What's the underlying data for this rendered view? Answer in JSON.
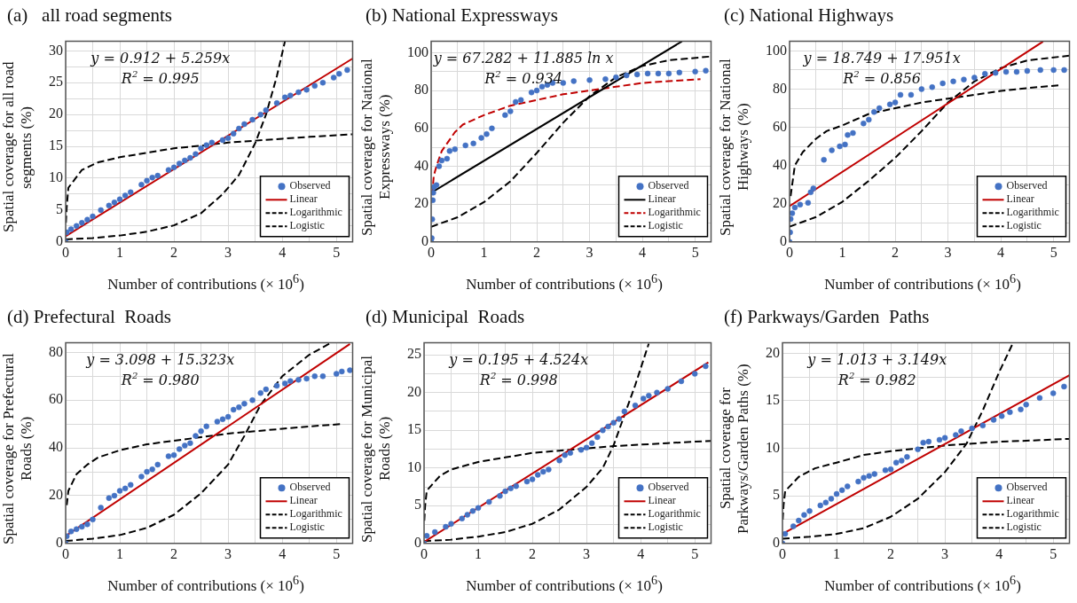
{
  "chart_data": [
    {
      "type": "scatter",
      "title": "(a)   all road segments",
      "xlabel": "Number of contributions (× 10$^{6}$)",
      "ylabel": "Spatial coverage for all road segments (%)",
      "annotations": [
        "y = 0.912 + 5.259x",
        "R$^{2}$ = 0.995"
      ],
      "xlim": [
        0,
        5.3
      ],
      "xticks": [
        0,
        {
          "value": 0.5,
          "label": null
        },
        1,
        {
          "value": 1.5,
          "label": null
        },
        2,
        {
          "value": 2.5,
          "label": null
        },
        3,
        {
          "value": 3.5,
          "label": null
        },
        4,
        {
          "value": 4.5,
          "label": null
        },
        5
      ],
      "ylim": [
        0,
        31.5
      ],
      "yticks": [
        0,
        {
          "value": 2.5,
          "label": null
        },
        5,
        {
          "value": 7.5,
          "label": null
        },
        10,
        {
          "value": 12.5,
          "label": null
        },
        15,
        {
          "value": 17.5,
          "label": null
        },
        20,
        {
          "value": 22.5,
          "label": null
        },
        25,
        {
          "value": 27.5,
          "label": null
        },
        30
      ],
      "grid": true,
      "legend": "bottom right",
      "series": [
        {
          "name": "Observed",
          "type": "scatter",
          "marker": "circle",
          "color": "#4472c4",
          "x": [
            0,
            0.02,
            0.1,
            0.2,
            0.3,
            0.4,
            0.5,
            0.65,
            0.8,
            0.9,
            1,
            1.1,
            1.2,
            1.4,
            1.5,
            1.6,
            1.7,
            1.9,
            2,
            2.1,
            2.2,
            2.3,
            2.4,
            2.5,
            2.6,
            2.7,
            2.9,
            3,
            3.1,
            3.2,
            3.3,
            3.45,
            3.6,
            3.7,
            3.9,
            4.05,
            4.15,
            4.3,
            4.45,
            4.6,
            4.75,
            4.95,
            5.05,
            5.2
          ],
          "values": [
            0,
            1.5,
            2,
            2.5,
            3,
            3.5,
            4,
            5,
            5.7,
            6.2,
            6.7,
            7.3,
            7.8,
            9,
            9.6,
            10.1,
            10.4,
            11.3,
            11.7,
            12.3,
            12.8,
            13.2,
            13.8,
            14.7,
            15.2,
            15.6,
            16,
            16.3,
            17,
            17.8,
            18.5,
            19.2,
            20,
            20.7,
            21.8,
            22.7,
            23,
            23.5,
            23.9,
            24.5,
            25,
            25.8,
            26.4,
            27
          ]
        },
        {
          "name": "Linear",
          "type": "line",
          "marker": "none",
          "line_style": "solid",
          "color": "#c00000",
          "x": [
            0,
            5.3
          ],
          "values": [
            0.9,
            28.8
          ]
        },
        {
          "name": "Logarithmic",
          "type": "line",
          "marker": "none",
          "line_style": "dashed",
          "color": "#000000",
          "x": [
            0.005,
            0.02,
            0.05,
            0.3,
            0.6,
            1,
            1.5,
            2,
            2.5,
            3,
            3.5,
            4,
            4.5,
            5.3
          ],
          "values": [
            3,
            5.5,
            8.5,
            11.3,
            12.5,
            13.3,
            14,
            14.7,
            15.1,
            15.6,
            15.9,
            16.2,
            16.5,
            16.9
          ]
        },
        {
          "name": "Logistic",
          "type": "line",
          "marker": "none",
          "line_style": "dashed",
          "color": "#000000",
          "x": [
            0,
            0.5,
            1,
            1.5,
            2,
            2.5,
            2.9,
            3.2,
            3.5,
            3.7,
            3.9,
            4.05
          ],
          "values": [
            0.4,
            0.6,
            1,
            1.6,
            2.6,
            4.5,
            7.5,
            10.5,
            15.5,
            20,
            26,
            31.5
          ]
        }
      ]
    },
    {
      "type": "scatter",
      "title": "(b) National Expressways",
      "xlabel": "Number of contributions (× 10$^{6}$)",
      "ylabel": "Spatial coverage for National Expressways (%)",
      "annotations": [
        "y = 67.282 + 11.885 ln x",
        "R$^{2}$ = 0.934"
      ],
      "xlim": [
        0,
        5.3
      ],
      "xticks": [
        0,
        {
          "value": 0.5,
          "label": null
        },
        1,
        {
          "value": 1.5,
          "label": null
        },
        2,
        {
          "value": 2.5,
          "label": null
        },
        3,
        {
          "value": 3.5,
          "label": null
        },
        4,
        {
          "value": 4.5,
          "label": null
        },
        5
      ],
      "ylim": [
        0,
        106
      ],
      "yticks": [
        0,
        {
          "value": 10,
          "label": null
        },
        20,
        {
          "value": 30,
          "label": null
        },
        40,
        {
          "value": 50,
          "label": null
        },
        60,
        {
          "value": 70,
          "label": null
        },
        80,
        {
          "value": 90,
          "label": null
        },
        100
      ],
      "grid": true,
      "legend": "bottom right",
      "series": [
        {
          "name": "Observed",
          "type": "scatter",
          "marker": "circle",
          "color": "#4472c4",
          "x": [
            0,
            0.01,
            0.02,
            0.03,
            0.04,
            0.05,
            0.1,
            0.15,
            0.2,
            0.3,
            0.35,
            0.45,
            0.65,
            0.8,
            0.95,
            1.05,
            1.15,
            1.4,
            1.5,
            1.6,
            1.7,
            1.9,
            2,
            2.1,
            2.2,
            2.3,
            2.5,
            2.7,
            3,
            3.3,
            3.5,
            3.7,
            3.9,
            4.1,
            4.3,
            4.5,
            4.7,
            5,
            5.2
          ],
          "values": [
            0,
            2,
            12,
            22,
            26,
            29,
            30,
            40,
            43,
            44,
            48,
            49,
            51,
            52,
            55,
            57,
            60,
            67,
            69,
            74,
            75,
            79,
            80,
            82,
            83,
            84,
            84,
            85,
            85.5,
            86,
            87,
            88,
            88.5,
            89,
            89,
            89,
            89.5,
            90,
            90.5
          ]
        },
        {
          "name": "Linear",
          "type": "line",
          "marker": "none",
          "line_style": "solid",
          "color": "#000000",
          "x": [
            0,
            4.75
          ],
          "values": [
            26,
            106
          ]
        },
        {
          "name": "Logarithmic",
          "type": "line",
          "marker": "none",
          "line_style": "dashed",
          "color": "#c00000",
          "x": [
            0.02,
            0.05,
            0.1,
            0.2,
            0.45,
            0.6,
            1,
            1.5,
            2,
            2.5,
            3,
            3.5,
            4,
            4.5,
            5.1
          ],
          "values": [
            25,
            35,
            40,
            48,
            58,
            62,
            67,
            72,
            75,
            78,
            80,
            82,
            84,
            85,
            86
          ]
        },
        {
          "name": "Logistic",
          "type": "line",
          "marker": "none",
          "line_style": "dashed",
          "color": "#000000",
          "x": [
            0,
            0.5,
            1,
            1.5,
            2,
            2.5,
            3,
            3.5,
            4,
            4.5,
            5.3
          ],
          "values": [
            8,
            13,
            21,
            32,
            47,
            63,
            77,
            87,
            93,
            96,
            98
          ]
        }
      ]
    },
    {
      "type": "scatter",
      "title": "(c) National Highways",
      "xlabel": "Number of contributions (× 10$^{6}$)",
      "ylabel": "Spatial coverage for National Highways (%)",
      "annotations": [
        "y = 18.749 + 17.951x",
        "R$^{2}$ = 0.856"
      ],
      "xlim": [
        0,
        5.3
      ],
      "xticks": [
        0,
        {
          "value": 0.5,
          "label": null
        },
        1,
        {
          "value": 1.5,
          "label": null
        },
        2,
        {
          "value": 2.5,
          "label": null
        },
        3,
        {
          "value": 3.5,
          "label": null
        },
        4,
        {
          "value": 4.5,
          "label": null
        },
        5
      ],
      "ylim": [
        0,
        105
      ],
      "yticks": [
        0,
        {
          "value": 10,
          "label": null
        },
        20,
        {
          "value": 30,
          "label": null
        },
        40,
        {
          "value": 50,
          "label": null
        },
        60,
        {
          "value": 70,
          "label": null
        },
        80,
        {
          "value": 90,
          "label": null
        },
        100
      ],
      "grid": true,
      "legend": "bottom right",
      "series": [
        {
          "name": "Observed",
          "type": "scatter",
          "marker": "circle",
          "color": "#4472c4",
          "x": [
            0,
            0.01,
            0.02,
            0.05,
            0.1,
            0.2,
            0.35,
            0.4,
            0.45,
            0.65,
            0.8,
            0.95,
            1.05,
            1.1,
            1.2,
            1.4,
            1.5,
            1.6,
            1.7,
            1.9,
            2,
            2.1,
            2.3,
            2.5,
            2.7,
            2.9,
            3.1,
            3.3,
            3.5,
            3.7,
            3.9,
            4.1,
            4.3,
            4.5,
            4.75,
            5,
            5.2
          ],
          "values": [
            0,
            5,
            12,
            15,
            18,
            19.5,
            20.5,
            26,
            28,
            43,
            48,
            50,
            51,
            56,
            57,
            62,
            64,
            68,
            70,
            72,
            73,
            77,
            77,
            80,
            81,
            83,
            84,
            85,
            86,
            88,
            88.5,
            89,
            89,
            89.5,
            90,
            90,
            90
          ]
        },
        {
          "name": "Linear",
          "type": "line",
          "marker": "none",
          "line_style": "solid",
          "color": "#c00000",
          "x": [
            0,
            4.8
          ],
          "values": [
            18.7,
            104.9
          ]
        },
        {
          "name": "Logarithmic",
          "type": "line",
          "marker": "none",
          "line_style": "dashed",
          "color": "#000000",
          "x": [
            0.02,
            0.05,
            0.1,
            0.25,
            0.5,
            0.7,
            1,
            1.5,
            2,
            2.5,
            3,
            3.5,
            4,
            4.5,
            5.1
          ],
          "values": [
            24,
            30,
            40,
            47,
            54,
            58,
            61,
            67,
            70,
            73,
            75,
            77,
            79,
            80.5,
            82
          ]
        },
        {
          "name": "Logistic",
          "type": "line",
          "marker": "none",
          "line_style": "dashed",
          "color": "#000000",
          "x": [
            0,
            0.5,
            1,
            1.5,
            2,
            2.5,
            3,
            3.5,
            4,
            4.5,
            5.3
          ],
          "values": [
            8,
            13,
            21,
            32,
            44,
            58,
            73,
            84,
            91,
            95,
            97.5
          ]
        }
      ]
    },
    {
      "type": "scatter",
      "title": "(d) Prefectural  Roads",
      "xlabel": "Number of contributions (× 10$^{6}$)",
      "ylabel": "Spatial coverage for Prefectural Roads (%)",
      "annotations": [
        "y = 3.098 + 15.323x",
        "R$^{2}$ = 0.980"
      ],
      "xlim": [
        0,
        5.3
      ],
      "xticks": [
        0,
        {
          "value": 0.5,
          "label": null
        },
        1,
        {
          "value": 1.5,
          "label": null
        },
        2,
        {
          "value": 2.5,
          "label": null
        },
        3,
        {
          "value": 3.5,
          "label": null
        },
        4,
        {
          "value": 4.5,
          "label": null
        },
        5
      ],
      "ylim": [
        0,
        84
      ],
      "yticks": [
        0,
        {
          "value": 10,
          "label": null
        },
        20,
        {
          "value": 30,
          "label": null
        },
        40,
        {
          "value": 50,
          "label": null
        },
        60,
        {
          "value": 70,
          "label": null
        },
        80
      ],
      "grid": true,
      "legend": "bottom right",
      "series": [
        {
          "name": "Observed",
          "type": "scatter",
          "marker": "circle",
          "color": "#4472c4",
          "x": [
            0,
            0.02,
            0.1,
            0.2,
            0.3,
            0.4,
            0.5,
            0.65,
            0.8,
            0.9,
            1,
            1.1,
            1.2,
            1.4,
            1.5,
            1.6,
            1.7,
            1.9,
            2,
            2.1,
            2.2,
            2.3,
            2.4,
            2.5,
            2.6,
            2.8,
            2.9,
            3,
            3.1,
            3.2,
            3.3,
            3.45,
            3.6,
            3.7,
            3.9,
            4.05,
            4.15,
            4.3,
            4.45,
            4.6,
            4.75,
            5,
            5.1,
            5.25
          ],
          "values": [
            0,
            3,
            5,
            6,
            7,
            8,
            10,
            15,
            19,
            20,
            22,
            23,
            24.5,
            28,
            30,
            31,
            33,
            36.5,
            37,
            39.5,
            41,
            42,
            45,
            47,
            49,
            51,
            52,
            53,
            56,
            57,
            58.5,
            60,
            63,
            64.5,
            66,
            67,
            68,
            68.5,
            69,
            70,
            70,
            71,
            72,
            72.5
          ]
        },
        {
          "name": "Linear",
          "type": "line",
          "marker": "none",
          "line_style": "solid",
          "color": "#c00000",
          "x": [
            0,
            5.25
          ],
          "values": [
            3.1,
            83.5
          ]
        },
        {
          "name": "Logarithmic",
          "type": "line",
          "marker": "none",
          "line_style": "dashed",
          "color": "#000000",
          "x": [
            0.02,
            0.05,
            0.2,
            0.4,
            0.6,
            1,
            1.5,
            2,
            2.5,
            3,
            3.5,
            4,
            4.5,
            5.1
          ],
          "values": [
            16,
            22,
            29,
            33,
            36,
            39,
            41.5,
            43,
            44.5,
            46,
            47,
            48,
            49,
            50
          ]
        },
        {
          "name": "Logistic",
          "type": "line",
          "marker": "none",
          "line_style": "dashed",
          "color": "#000000",
          "x": [
            0,
            0.5,
            1,
            1.5,
            2,
            2.5,
            3,
            3.3,
            3.6,
            4,
            4.5,
            4.9
          ],
          "values": [
            1,
            2,
            3.5,
            6.5,
            12,
            21,
            33,
            45,
            58,
            70,
            79,
            84
          ]
        }
      ]
    },
    {
      "type": "scatter",
      "title": "(d) Municipal  Roads",
      "xlabel": "Number of contributions (× 10$^{6}$)",
      "ylabel": "Spatial coverage for Municipal Roads (%)",
      "annotations": [
        "y = 0.195 + 4.524x",
        "R$^{2}$ = 0.998"
      ],
      "xlim": [
        0,
        5.3
      ],
      "xticks": [
        0,
        {
          "value": 0.5,
          "label": null
        },
        1,
        {
          "value": 1.5,
          "label": null
        },
        2,
        {
          "value": 2.5,
          "label": null
        },
        3,
        {
          "value": 3.5,
          "label": null
        },
        4,
        {
          "value": 4.5,
          "label": null
        },
        5
      ],
      "ylim": [
        0,
        26.6
      ],
      "yticks": [
        0,
        {
          "value": 2.5,
          "label": null
        },
        5,
        {
          "value": 7.5,
          "label": null
        },
        10,
        {
          "value": 12.5,
          "label": null
        },
        15,
        {
          "value": 17.5,
          "label": null
        },
        20,
        {
          "value": 22.5,
          "label": null
        },
        25
      ],
      "grid": true,
      "legend": "bottom right",
      "series": [
        {
          "name": "Observed",
          "type": "scatter",
          "marker": "circle",
          "color": "#4472c4",
          "x": [
            0,
            0.05,
            0.2,
            0.4,
            0.5,
            0.7,
            0.8,
            0.9,
            1,
            1.2,
            1.4,
            1.5,
            1.6,
            1.7,
            1.9,
            2,
            2.1,
            2.2,
            2.3,
            2.5,
            2.6,
            2.7,
            2.9,
            3,
            3.1,
            3.2,
            3.3,
            3.4,
            3.5,
            3.6,
            3.7,
            3.9,
            4.05,
            4.15,
            4.3,
            4.5,
            4.75,
            5,
            5.2
          ],
          "values": [
            0,
            1,
            1.5,
            2.2,
            2.6,
            3.3,
            3.8,
            4.3,
            4.7,
            5.5,
            6.3,
            6.9,
            7.3,
            7.6,
            8.2,
            8.5,
            9.1,
            9.5,
            9.8,
            11,
            11.7,
            12,
            12.4,
            12.7,
            13.3,
            14.1,
            15,
            15.5,
            16,
            16.5,
            17.5,
            18.3,
            19.2,
            19.6,
            20,
            20.5,
            21.5,
            22.5,
            23.5
          ]
        },
        {
          "name": "Linear",
          "type": "line",
          "marker": "none",
          "line_style": "solid",
          "color": "#c00000",
          "x": [
            0,
            5.25
          ],
          "values": [
            0.2,
            24
          ]
        },
        {
          "name": "Logarithmic",
          "type": "line",
          "marker": "none",
          "line_style": "dashed",
          "color": "#000000",
          "x": [
            0.005,
            0.02,
            0.05,
            0.3,
            0.5,
            1,
            1.5,
            2,
            2.5,
            3,
            3.5,
            4,
            4.5,
            5.3
          ],
          "values": [
            3,
            5,
            7,
            9,
            9.8,
            10.8,
            11.4,
            12,
            12.3,
            12.6,
            12.9,
            13.1,
            13.3,
            13.6
          ]
        },
        {
          "name": "Logistic",
          "type": "line",
          "marker": "none",
          "line_style": "dashed",
          "color": "#000000",
          "x": [
            0,
            0.5,
            1,
            1.5,
            2,
            2.5,
            3,
            3.3,
            3.5,
            3.7,
            3.9,
            4.15
          ],
          "values": [
            0.3,
            0.5,
            0.9,
            1.5,
            2.6,
            4.5,
            7.5,
            10,
            13,
            17,
            21,
            26.5
          ]
        }
      ]
    },
    {
      "type": "scatter",
      "title": "(f) Parkways/Garden  Paths",
      "xlabel": "Number of contributions (× 10$^{6}$)",
      "ylabel": "Spatial coverage for Parkways/Garden Paths (%)",
      "annotations": [
        "y = 1.013 + 3.149x",
        "R$^{2}$ = 0.982"
      ],
      "xlim": [
        0,
        5.3
      ],
      "xticks": [
        0,
        {
          "value": 0.5,
          "label": null
        },
        1,
        {
          "value": 1.5,
          "label": null
        },
        2,
        {
          "value": 2.5,
          "label": null
        },
        3,
        {
          "value": 3.5,
          "label": null
        },
        4,
        {
          "value": 4.5,
          "label": null
        },
        5
      ],
      "ylim": [
        0,
        21.1
      ],
      "yticks": [
        0,
        {
          "value": 2.5,
          "label": null
        },
        5,
        {
          "value": 7.5,
          "label": null
        },
        10,
        {
          "value": 12.5,
          "label": null
        },
        15,
        {
          "value": 17.5,
          "label": null
        },
        20
      ],
      "grid": true,
      "legend": "bottom right",
      "series": [
        {
          "name": "Observed",
          "type": "scatter",
          "marker": "circle",
          "color": "#4472c4",
          "x": [
            0,
            0.05,
            0.2,
            0.3,
            0.4,
            0.5,
            0.7,
            0.8,
            0.9,
            1,
            1.1,
            1.2,
            1.4,
            1.5,
            1.6,
            1.7,
            1.9,
            2,
            2.1,
            2.2,
            2.3,
            2.5,
            2.6,
            2.7,
            2.9,
            3,
            3.2,
            3.3,
            3.5,
            3.7,
            3.9,
            4.05,
            4.2,
            4.4,
            4.5,
            4.75,
            5,
            5.2
          ],
          "values": [
            0,
            1,
            1.8,
            2.4,
            3,
            3.4,
            4,
            4.3,
            4.7,
            5.2,
            5.6,
            6,
            6.5,
            6.9,
            7.1,
            7.3,
            7.7,
            7.8,
            8.5,
            8.7,
            9.1,
            9.9,
            10.6,
            10.7,
            10.9,
            11.1,
            11.4,
            11.8,
            12.1,
            12.4,
            13,
            13.4,
            13.8,
            14.1,
            14.6,
            15.3,
            15.8,
            16.5
          ]
        },
        {
          "name": "Linear",
          "type": "line",
          "marker": "none",
          "line_style": "solid",
          "color": "#c00000",
          "x": [
            0,
            5.3
          ],
          "values": [
            1,
            17.7
          ]
        },
        {
          "name": "Logarithmic",
          "type": "line",
          "marker": "none",
          "line_style": "dashed",
          "color": "#000000",
          "x": [
            0.005,
            0.02,
            0.05,
            0.3,
            0.6,
            1,
            1.5,
            2,
            2.5,
            3,
            3.5,
            4,
            4.5,
            5.3
          ],
          "values": [
            2.5,
            4,
            5.5,
            7,
            7.9,
            8.5,
            9.3,
            9.7,
            10,
            10.3,
            10.5,
            10.7,
            10.8,
            11
          ]
        },
        {
          "name": "Logistic",
          "type": "line",
          "marker": "none",
          "line_style": "dashed",
          "color": "#000000",
          "x": [
            0,
            0.5,
            1,
            1.5,
            2,
            2.5,
            3,
            3.4,
            3.7,
            4,
            4.25
          ],
          "values": [
            0.5,
            0.7,
            1,
            1.6,
            2.8,
            4.7,
            7.5,
            10.5,
            14,
            18,
            21
          ]
        }
      ]
    }
  ]
}
